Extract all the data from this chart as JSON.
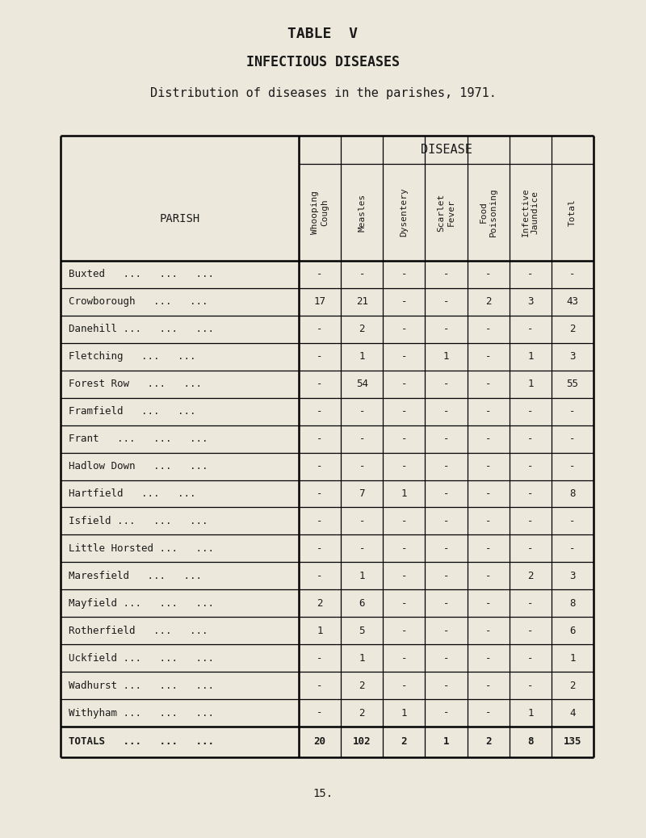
{
  "title1": "TABLE  V",
  "title2": "INFECTIOUS DISEASES",
  "title3": "Distribution of diseases in the parishes, 1971.",
  "page_number": "15.",
  "bg_color": "#ede8dc",
  "text_color": "#1a1a1a",
  "col_headers": [
    "Whooping\nCough",
    "Measles",
    "Dysentery",
    "Scarlet\nFever",
    "Food\nPoisoning",
    "Infective\nJaundice",
    "Total"
  ],
  "parishes": [
    "Buxted   ...   ...   ...",
    "Crowborough   ...   ...",
    "Danehill ...   ...   ...",
    "Fletching   ...   ...",
    "Forest Row   ...   ...",
    "Framfield   ...   ...",
    "Frant   ...   ...   ...",
    "Hadlow Down   ...   ...",
    "Hartfield   ...   ...",
    "Isfield ...   ...   ...",
    "Little Horsted ...   ...",
    "Maresfield   ...   ...",
    "Mayfield ...   ...   ...",
    "Rotherfield   ...   ...",
    "Uckfield ...   ...   ...",
    "Wadhurst ...   ...   ...",
    "Withyham ...   ...   ..."
  ],
  "data": [
    [
      "-",
      "-",
      "-",
      "-",
      "-",
      "-",
      "-"
    ],
    [
      "17",
      "21",
      "-",
      "-",
      "2",
      "3",
      "43"
    ],
    [
      "-",
      "2",
      "-",
      "-",
      "-",
      "-",
      "2"
    ],
    [
      "-",
      "1",
      "-",
      "1",
      "-",
      "1",
      "3"
    ],
    [
      "-",
      "54",
      "-",
      "-",
      "-",
      "1",
      "55"
    ],
    [
      "-",
      "-",
      "-",
      "-",
      "-",
      "-",
      "-"
    ],
    [
      "-",
      "-",
      "-",
      "-",
      "-",
      "-",
      "-"
    ],
    [
      "-",
      "-",
      "-",
      "-",
      "-",
      "-",
      "-"
    ],
    [
      "-",
      "7",
      "1",
      "-",
      "-",
      "-",
      "8"
    ],
    [
      "-",
      "-",
      "-",
      "-",
      "-",
      "-",
      "-"
    ],
    [
      "-",
      "-",
      "-",
      "-",
      "-",
      "-",
      "-"
    ],
    [
      "-",
      "1",
      "-",
      "-",
      "-",
      "2",
      "3"
    ],
    [
      "2",
      "6",
      "-",
      "-",
      "-",
      "-",
      "8"
    ],
    [
      "1",
      "5",
      "-",
      "-",
      "-",
      "-",
      "6"
    ],
    [
      "-",
      "1",
      "-",
      "-",
      "-",
      "-",
      "1"
    ],
    [
      "-",
      "2",
      "-",
      "-",
      "-",
      "-",
      "2"
    ],
    [
      "-",
      "2",
      "1",
      "-",
      "-",
      "1",
      "4"
    ]
  ],
  "totals_label": "TOTALS   ...   ...   ...",
  "totals": [
    "20",
    "102",
    "2",
    "1",
    "2",
    "8",
    "135"
  ]
}
